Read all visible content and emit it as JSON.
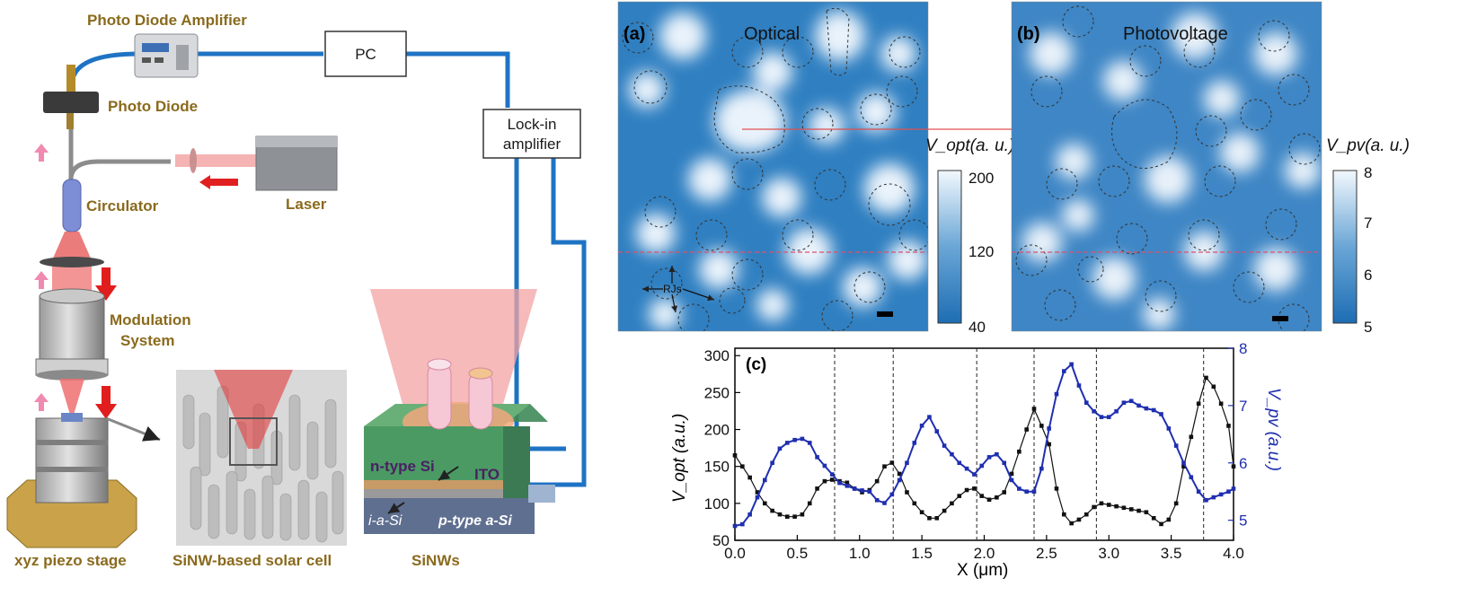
{
  "setup": {
    "labels": {
      "photo_diode_amplifier": "Photo Diode Amplifier",
      "photo_diode": "Photo Diode",
      "circulator": "Circulator",
      "laser": "Laser",
      "modulation_line1": "Modulation",
      "modulation_line2": "System",
      "xyz_stage": "xyz piezo stage",
      "sinw_cell": "SiNW-based solar cell",
      "sinws": "SiNWs",
      "pc": "PC",
      "lockin_line1": "Lock-in",
      "lockin_line2": "amplifier",
      "n_type_si": "n-type Si",
      "ito": "ITO",
      "i_asi": "i-a-Si",
      "p_type_asi": "p-type a-Si"
    }
  },
  "map_a": {
    "panel": "(a)",
    "title": "Optical",
    "annotation": "RJs",
    "colorbar_label": "V_opt(a. u.)",
    "colorbar_ticks": [
      "200",
      "120",
      "40"
    ]
  },
  "map_b": {
    "panel": "(b)",
    "title": "Photovoltage",
    "colorbar_label": "V_pv(a. u.)",
    "colorbar_ticks": [
      "8",
      "7",
      "6",
      "5"
    ]
  },
  "chart_data": {
    "type": "line",
    "panel": "(c)",
    "xlabel": "X (μm)",
    "ylabel_left": "V_opt (a.u.)",
    "ylabel_right": "V_pv (a.u.)",
    "xlim": [
      0.0,
      4.0
    ],
    "ylim_left": [
      50,
      310
    ],
    "ylim_right": [
      4.65,
      8.0
    ],
    "x_ticks": [
      "0.0",
      "0.5",
      "1.0",
      "1.5",
      "2.0",
      "2.5",
      "3.0",
      "3.5",
      "4.0"
    ],
    "y_left_ticks": [
      "50",
      "100",
      "150",
      "200",
      "250",
      "300"
    ],
    "y_right_ticks": [
      "5",
      "6",
      "7",
      "8"
    ],
    "vlines": [
      0.8,
      1.27,
      1.94,
      2.4,
      2.9,
      3.76
    ],
    "colors": {
      "opt": "#111111",
      "pv": "#1f2fb0"
    },
    "series": [
      {
        "axis": "left",
        "x": [
          0.0,
          0.06,
          0.12,
          0.18,
          0.24,
          0.3,
          0.36,
          0.42,
          0.48,
          0.54,
          0.6,
          0.66,
          0.72,
          0.78,
          0.84,
          0.9,
          0.96,
          1.02,
          1.08,
          1.14,
          1.2,
          1.26,
          1.32,
          1.38,
          1.44,
          1.5,
          1.56,
          1.62,
          1.68,
          1.74,
          1.8,
          1.86,
          1.92,
          1.98,
          2.04,
          2.1,
          2.16,
          2.22,
          2.28,
          2.34,
          2.4,
          2.46,
          2.52,
          2.58,
          2.64,
          2.7,
          2.76,
          2.82,
          2.88,
          2.94,
          3.0,
          3.06,
          3.12,
          3.18,
          3.24,
          3.3,
          3.36,
          3.42,
          3.48,
          3.54,
          3.6,
          3.66,
          3.72,
          3.78,
          3.84,
          3.9,
          3.96,
          4.0
        ],
        "values": [
          165,
          150,
          135,
          115,
          100,
          90,
          85,
          82,
          82,
          85,
          100,
          120,
          130,
          132,
          130,
          128,
          120,
          115,
          118,
          130,
          150,
          155,
          140,
          115,
          100,
          88,
          80,
          80,
          90,
          100,
          110,
          118,
          120,
          110,
          105,
          108,
          115,
          140,
          170,
          200,
          228,
          205,
          180,
          120,
          85,
          73,
          78,
          85,
          95,
          100,
          98,
          96,
          94,
          92,
          90,
          88,
          80,
          72,
          78,
          100,
          150,
          190,
          235,
          270,
          258,
          235,
          205,
          150
        ]
      },
      {
        "axis": "right",
        "x": [
          0.0,
          0.06,
          0.12,
          0.18,
          0.24,
          0.3,
          0.36,
          0.42,
          0.48,
          0.54,
          0.6,
          0.66,
          0.72,
          0.78,
          0.84,
          0.9,
          0.96,
          1.02,
          1.08,
          1.14,
          1.2,
          1.26,
          1.32,
          1.38,
          1.44,
          1.5,
          1.56,
          1.62,
          1.68,
          1.74,
          1.8,
          1.86,
          1.92,
          1.98,
          2.04,
          2.1,
          2.16,
          2.22,
          2.28,
          2.34,
          2.4,
          2.46,
          2.52,
          2.58,
          2.64,
          2.7,
          2.76,
          2.82,
          2.88,
          2.94,
          3.0,
          3.06,
          3.12,
          3.18,
          3.24,
          3.3,
          3.36,
          3.42,
          3.48,
          3.54,
          3.6,
          3.66,
          3.72,
          3.78,
          3.84,
          3.9,
          3.96,
          4.0
        ],
        "values": [
          4.9,
          4.93,
          5.1,
          5.4,
          5.7,
          6.0,
          6.25,
          6.35,
          6.4,
          6.42,
          6.35,
          6.1,
          5.95,
          5.8,
          5.65,
          5.6,
          5.55,
          5.52,
          5.5,
          5.35,
          5.3,
          5.45,
          5.7,
          6.0,
          6.35,
          6.65,
          6.8,
          6.55,
          6.3,
          6.15,
          6.0,
          5.9,
          5.8,
          5.95,
          6.1,
          6.15,
          6.0,
          5.7,
          5.55,
          5.5,
          5.5,
          5.9,
          6.6,
          7.2,
          7.6,
          7.72,
          7.35,
          7.05,
          6.9,
          6.8,
          6.8,
          6.9,
          7.05,
          7.08,
          7.0,
          6.95,
          6.92,
          6.85,
          6.6,
          6.3,
          6.0,
          5.75,
          5.5,
          5.35,
          5.4,
          5.45,
          5.5,
          5.55
        ]
      }
    ]
  }
}
